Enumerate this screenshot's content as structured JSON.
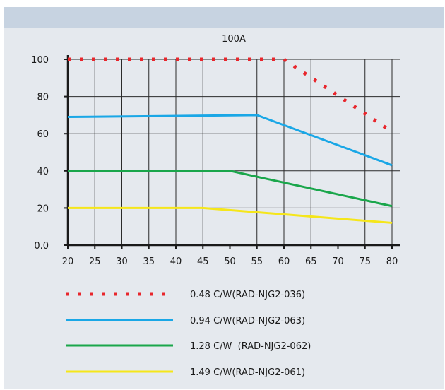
{
  "chart_data": {
    "type": "line",
    "title": "100A",
    "xlabel": "",
    "ylabel": "",
    "x_ticks": [
      "20",
      "25",
      "30",
      "35",
      "40",
      "45",
      "50",
      "55",
      "60",
      "65",
      "70",
      "75",
      "80"
    ],
    "y_ticks": [
      "0.0",
      "20",
      "40",
      "60",
      "80",
      "100"
    ],
    "xlim": [
      20,
      80
    ],
    "ylim": [
      0,
      100
    ],
    "grid": true,
    "legend_position": "bottom",
    "series": [
      {
        "name": "0.48 C/W(RAD-NJG2-036)",
        "color": "#e8262c",
        "style": "dotted",
        "points": [
          [
            20,
            100
          ],
          [
            60,
            100
          ],
          [
            80,
            61
          ]
        ]
      },
      {
        "name": "0.94 C/W(RAD-NJG2-063)",
        "color": "#1aa7e6",
        "style": "solid",
        "points": [
          [
            20,
            69
          ],
          [
            55,
            70
          ],
          [
            80,
            43
          ]
        ]
      },
      {
        "name": "1.28 C/W  (RAD-NJG2-062)",
        "color": "#1aa64b",
        "style": "solid",
        "points": [
          [
            20,
            40
          ],
          [
            50,
            40
          ],
          [
            80,
            21
          ]
        ]
      },
      {
        "name": "1.49 C/W(RAD-NJG2-061)",
        "color": "#f5e61a",
        "style": "solid",
        "points": [
          [
            20,
            20
          ],
          [
            45,
            20
          ],
          [
            80,
            12
          ]
        ]
      }
    ]
  }
}
